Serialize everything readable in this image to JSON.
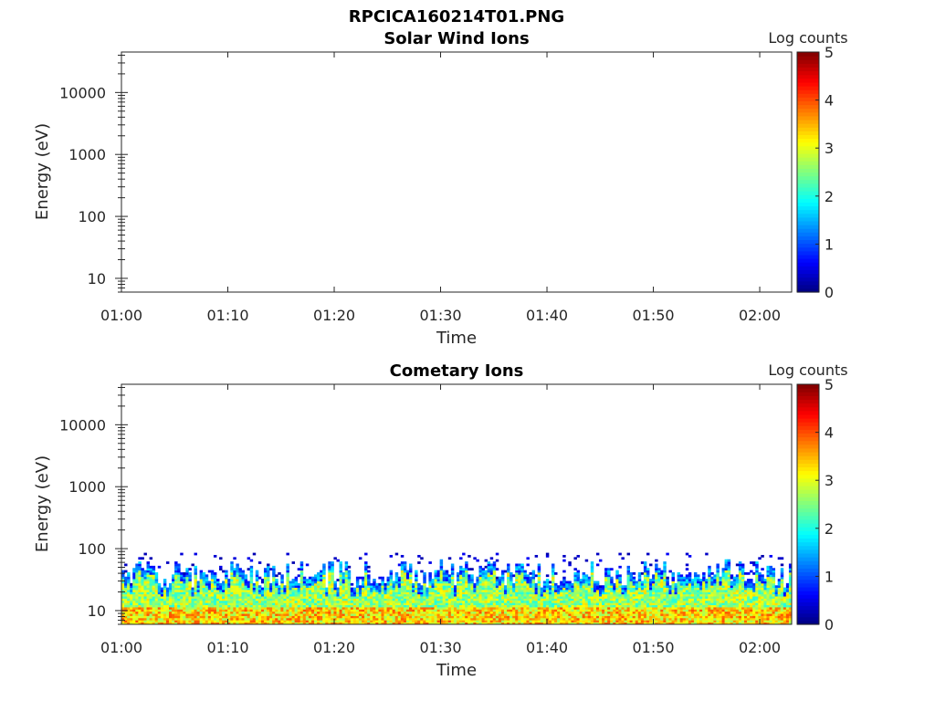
{
  "figure": {
    "title": "RPCICA160214T01.PNG"
  },
  "chart_data": [
    {
      "type": "heatmap",
      "title": "Solar Wind Ions",
      "xlabel": "Time",
      "ylabel": "Energy (eV)",
      "x_ticks": [
        "01:00",
        "01:10",
        "01:20",
        "01:30",
        "01:40",
        "01:50",
        "02:00"
      ],
      "x_range": [
        "01:00",
        "02:03"
      ],
      "y_scale": "log",
      "y_ticks": [
        "10",
        "100",
        "1000",
        "10000"
      ],
      "y_range": [
        6,
        45000
      ],
      "colorbar": {
        "label": "Log counts",
        "ticks": [
          "0",
          "1",
          "2",
          "3",
          "4",
          "5"
        ],
        "range": [
          0,
          5
        ],
        "colormap": "jet"
      },
      "data": "empty"
    },
    {
      "type": "heatmap",
      "title": "Cometary Ions",
      "xlabel": "Time",
      "ylabel": "Energy (eV)",
      "x_ticks": [
        "01:00",
        "01:10",
        "01:20",
        "01:30",
        "01:40",
        "01:50",
        "02:00"
      ],
      "x_range": [
        "01:00",
        "02:03"
      ],
      "y_scale": "log",
      "y_ticks": [
        "10",
        "100",
        "1000",
        "10000"
      ],
      "y_range": [
        6,
        45000
      ],
      "colorbar": {
        "label": "Log counts",
        "ticks": [
          "0",
          "1",
          "2",
          "3",
          "4",
          "5"
        ],
        "range": [
          0,
          5
        ],
        "colormap": "jet"
      },
      "data": "ion counts concentrated between about 6 and 30 eV (log counts ~2.5-4), sparse low counts up to about 80 eV"
    }
  ]
}
